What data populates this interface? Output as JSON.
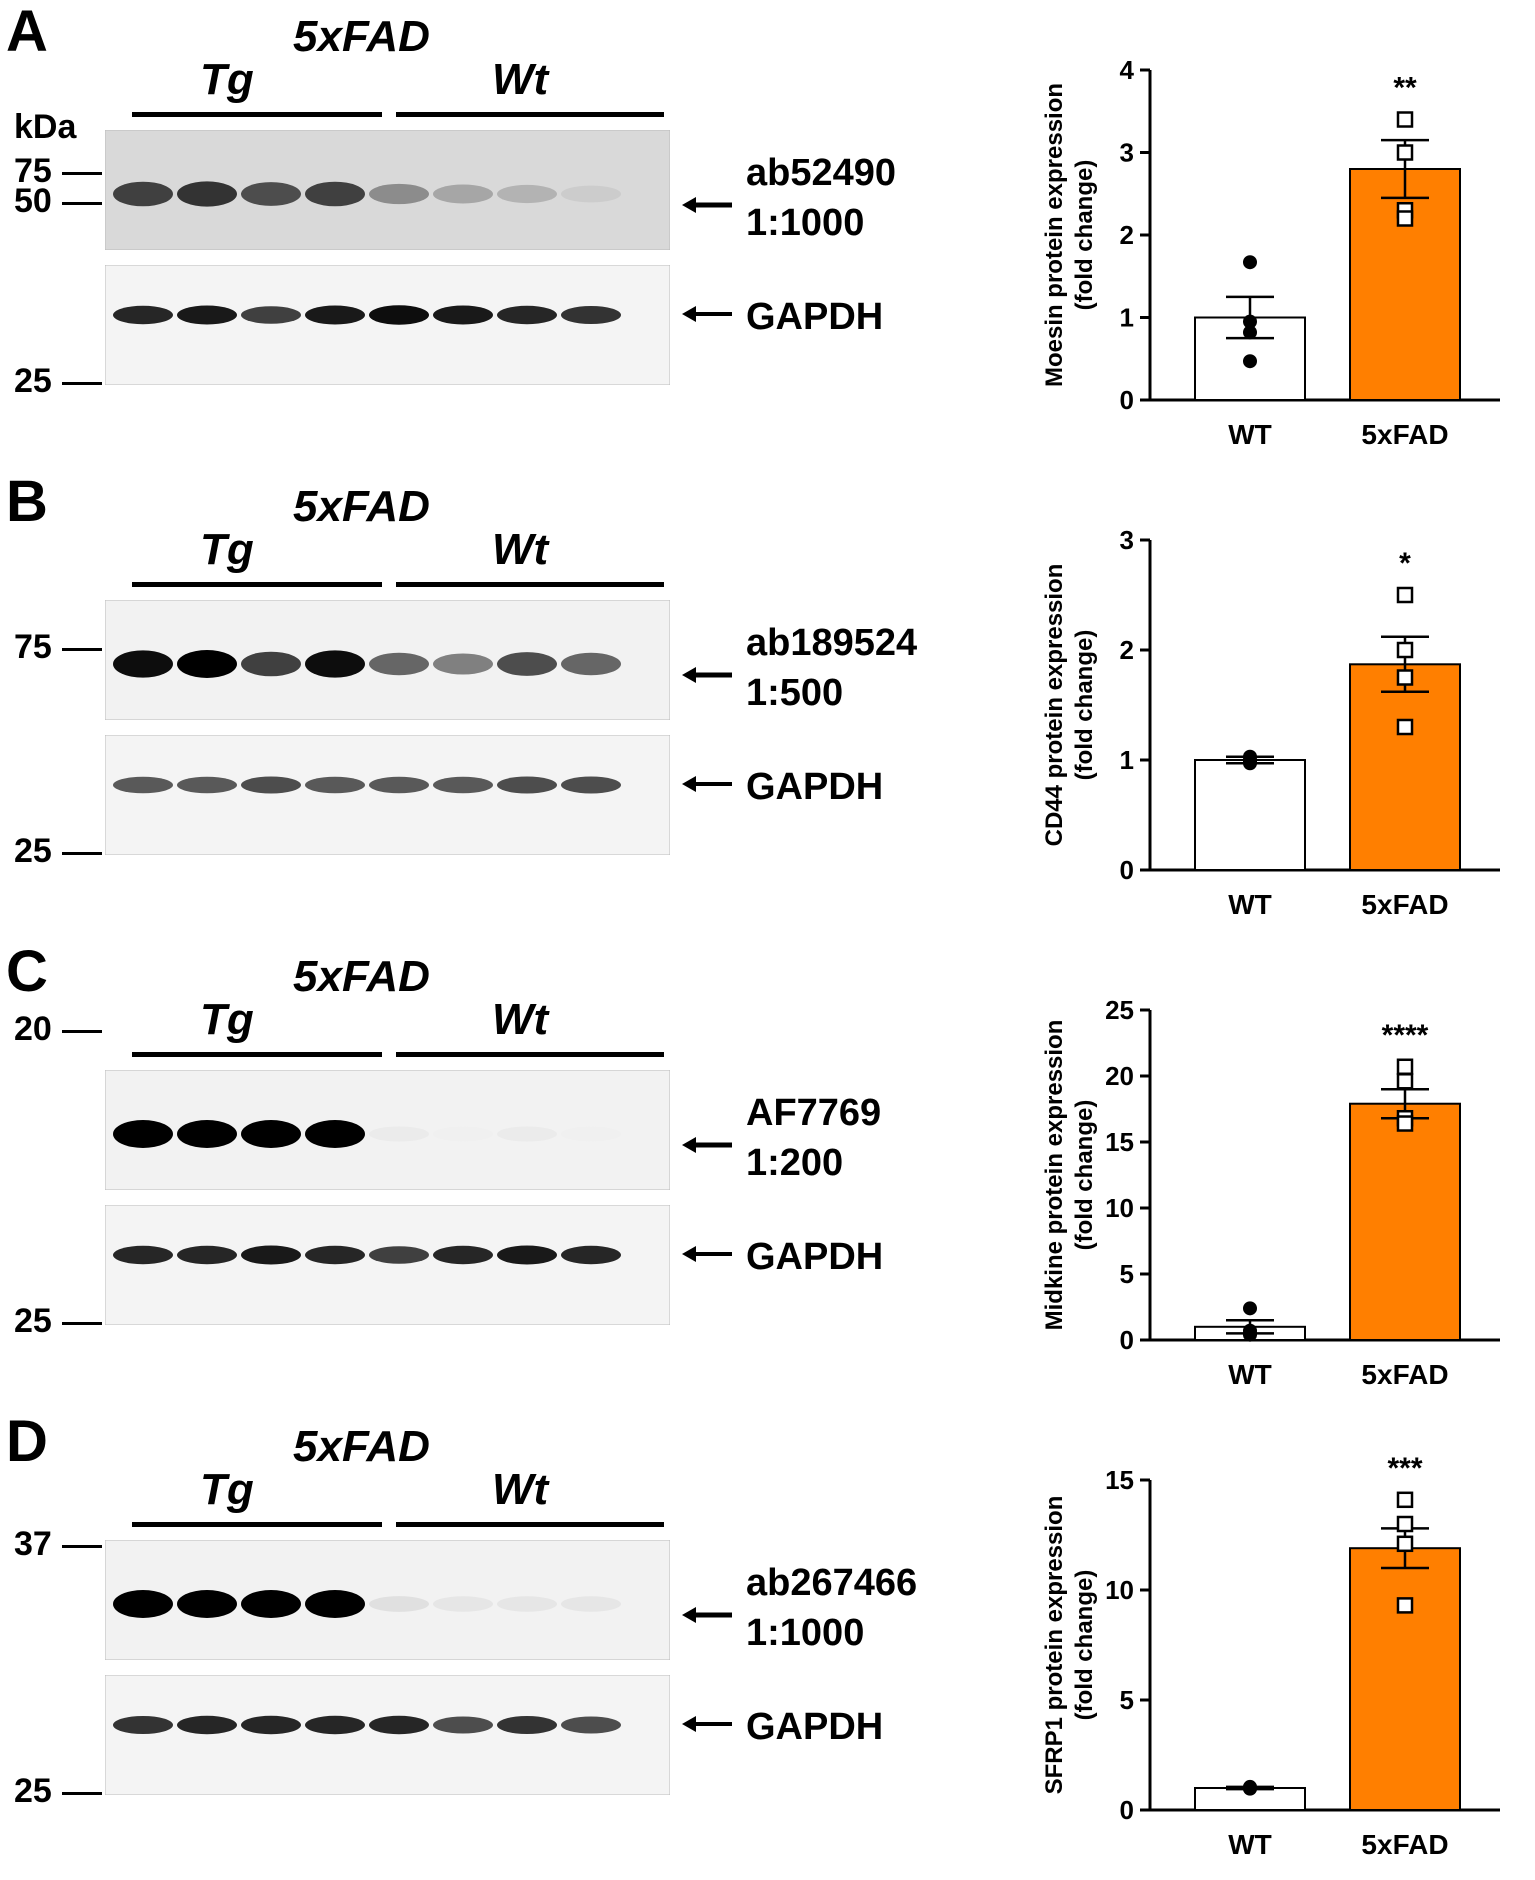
{
  "panels": [
    {
      "letter": "A",
      "group_title": "5xFAD",
      "group_tg": "Tg",
      "group_wt": "Wt",
      "kda_label": "kDa",
      "markers_top": [
        "75",
        "50"
      ],
      "markers_bottom": [
        "25"
      ],
      "antibody": "ab52490",
      "dilution": "1:1000",
      "loading_control": "GAPDH",
      "top_band_intensity": [
        0.75,
        0.8,
        0.7,
        0.75,
        0.45,
        0.35,
        0.3,
        0.2
      ],
      "gapdh_band_intensity": [
        0.85,
        0.9,
        0.75,
        0.9,
        0.95,
        0.9,
        0.85,
        0.8
      ],
      "chart_data": {
        "type": "bar",
        "categories": [
          "WT",
          "5xFAD"
        ],
        "values": [
          1.0,
          2.8
        ],
        "errors": [
          0.25,
          0.35
        ],
        "points": [
          [
            1.67,
            0.95,
            0.82,
            0.47
          ],
          [
            3.4,
            3.0,
            2.3,
            2.2
          ]
        ],
        "significance": "**",
        "ylabel_line1": "Moesin protein expression",
        "ylabel_line2": "(fold change)",
        "ylim": [
          0,
          4
        ],
        "yticks": [
          "0",
          "1",
          "2",
          "3",
          "4"
        ],
        "colors": [
          "#ffffff",
          "#ff7f00"
        ]
      }
    },
    {
      "letter": "B",
      "group_title": "5xFAD",
      "group_tg": "Tg",
      "group_wt": "Wt",
      "kda_label": "",
      "markers_top": [
        "75"
      ],
      "markers_bottom": [
        "25"
      ],
      "antibody": "ab189524",
      "dilution": "1:500",
      "loading_control": "GAPDH",
      "top_band_intensity": [
        0.95,
        1.0,
        0.75,
        0.95,
        0.6,
        0.5,
        0.7,
        0.6
      ],
      "gapdh_band_intensity": [
        0.65,
        0.65,
        0.7,
        0.65,
        0.65,
        0.65,
        0.7,
        0.7
      ],
      "chart_data": {
        "type": "bar",
        "categories": [
          "WT",
          "5xFAD"
        ],
        "values": [
          1.0,
          1.87
        ],
        "errors": [
          0.03,
          0.25
        ],
        "points": [
          [
            1.03,
            1.0,
            0.98,
            0.97
          ],
          [
            2.5,
            2.0,
            1.75,
            1.3
          ]
        ],
        "significance": "*",
        "ylabel_line1": "CD44 protein expression",
        "ylabel_line2": "(fold change)",
        "ylim": [
          0,
          3
        ],
        "yticks": [
          "0",
          "1",
          "2",
          "3"
        ],
        "colors": [
          "#ffffff",
          "#ff7f00"
        ]
      }
    },
    {
      "letter": "C",
      "group_title": "5xFAD",
      "group_tg": "Tg",
      "group_wt": "Wt",
      "kda_label": "",
      "markers_top": [
        "20"
      ],
      "markers_bottom": [
        "25"
      ],
      "antibody": "AF7769",
      "dilution": "1:200",
      "loading_control": "GAPDH",
      "top_band_intensity": [
        1.0,
        1.0,
        1.0,
        1.0,
        0.08,
        0.06,
        0.08,
        0.06
      ],
      "gapdh_band_intensity": [
        0.85,
        0.85,
        0.9,
        0.85,
        0.75,
        0.85,
        0.9,
        0.85
      ],
      "chart_data": {
        "type": "bar",
        "categories": [
          "WT",
          "5xFAD"
        ],
        "values": [
          1.0,
          17.9
        ],
        "errors": [
          0.5,
          1.1
        ],
        "points": [
          [
            2.4,
            0.7,
            0.5,
            0.4
          ],
          [
            20.7,
            19.6,
            16.8,
            16.4
          ]
        ],
        "significance": "****",
        "ylabel_line1": "Midkine protein expression",
        "ylabel_line2": "(fold change)",
        "ylim": [
          0,
          25
        ],
        "yticks": [
          "0",
          "5",
          "10",
          "15",
          "20",
          "25"
        ],
        "colors": [
          "#ffffff",
          "#ff7f00"
        ]
      }
    },
    {
      "letter": "D",
      "group_title": "5xFAD",
      "group_tg": "Tg",
      "group_wt": "Wt",
      "kda_label": "",
      "markers_top": [
        "37"
      ],
      "markers_bottom": [
        "25"
      ],
      "antibody": "ab267466",
      "dilution": "1:1000",
      "loading_control": "GAPDH",
      "top_band_intensity": [
        1.0,
        1.0,
        1.0,
        1.0,
        0.12,
        0.1,
        0.1,
        0.1
      ],
      "gapdh_band_intensity": [
        0.8,
        0.85,
        0.85,
        0.85,
        0.85,
        0.7,
        0.8,
        0.7
      ],
      "chart_data": {
        "type": "bar",
        "categories": [
          "WT",
          "5xFAD"
        ],
        "values": [
          1.0,
          11.9
        ],
        "errors": [
          0.05,
          0.9
        ],
        "points": [
          [
            1.05,
            1.0,
            0.98,
            0.97
          ],
          [
            14.1,
            13.0,
            12.1,
            9.3
          ]
        ],
        "significance": "***",
        "ylabel_line1": "SFRP1 protein expression",
        "ylabel_line2": "(fold change)",
        "ylim": [
          0,
          15
        ],
        "yticks": [
          "0",
          "5",
          "10",
          "15"
        ],
        "colors": [
          "#ffffff",
          "#ff7f00"
        ]
      }
    }
  ]
}
